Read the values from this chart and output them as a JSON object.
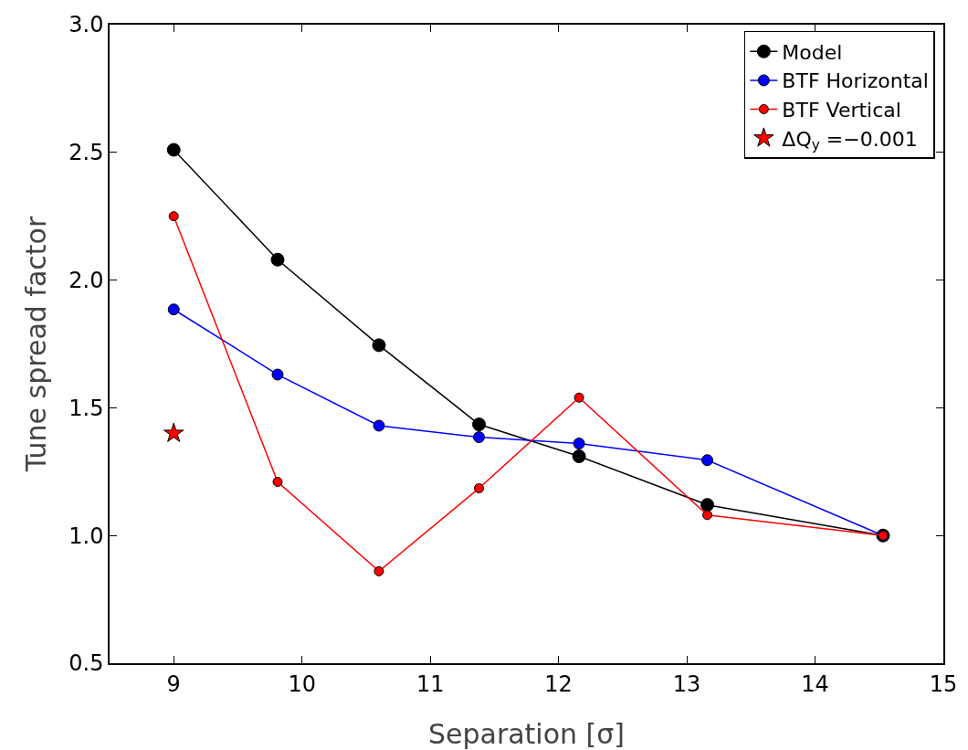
{
  "chart_data": {
    "type": "line",
    "xlabel": "Separation [σ]",
    "ylabel": "Tune spread factor",
    "xlim": [
      8.5,
      15
    ],
    "xticks": [
      9,
      10,
      11,
      12,
      13,
      14,
      15
    ],
    "ylim": [
      0.5,
      3.0
    ],
    "yticks": [
      {
        "value": 0.5,
        "label": "0.5"
      },
      {
        "value": 1,
        "label": "1.0"
      },
      {
        "value": 1.5,
        "label": "1.5"
      },
      {
        "value": 2,
        "label": "2.0"
      },
      {
        "value": 2.5,
        "label": "2.5"
      },
      {
        "value": 3,
        "label": "3.0"
      }
    ],
    "grid": false,
    "legend": "top right",
    "marker": "circle",
    "line_style": "solid",
    "x": [
      9.0,
      9.81,
      10.6,
      11.38,
      12.16,
      13.16,
      14.53
    ],
    "series": [
      {
        "name": "Model",
        "color": "#000000",
        "values": [
          2.51,
          2.08,
          1.745,
          1.435,
          1.31,
          1.12,
          1.0
        ]
      },
      {
        "name": "BTF Horizontal",
        "color": "#0000ff",
        "values": [
          1.885,
          1.63,
          1.43,
          1.385,
          1.36,
          1.295,
          1.0
        ]
      },
      {
        "name": "BTF Vertical",
        "color": "#ff0000",
        "values": [
          2.25,
          1.21,
          0.86,
          1.185,
          1.54,
          1.08,
          1.0
        ]
      },
      {
        "name": "ΔQ$_{y}$ =−0.001",
        "type": "scatter",
        "marker": "star",
        "color": "#ff0000",
        "x": [
          9.0
        ],
        "values": [
          1.4
        ]
      }
    ]
  }
}
